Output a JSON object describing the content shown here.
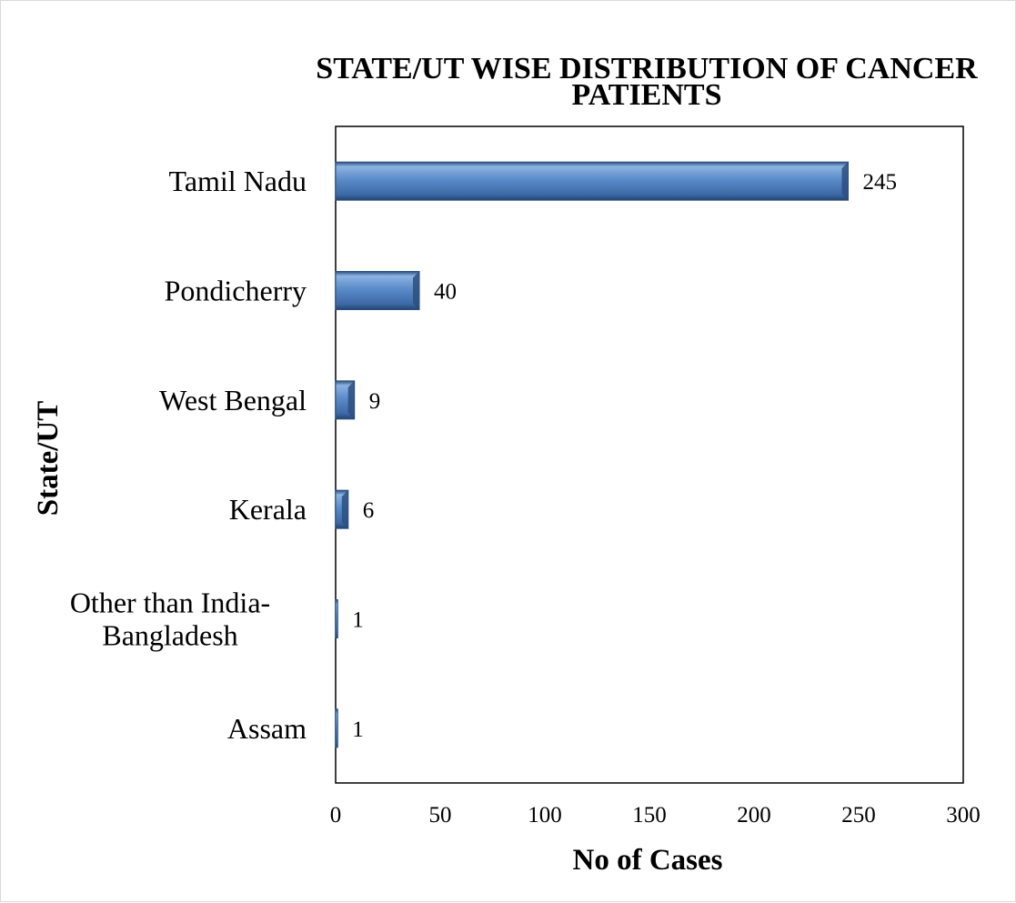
{
  "chart_data": {
    "type": "bar",
    "orientation": "horizontal",
    "title_lines": [
      "STATE/UT WISE DISTRIBUTION OF CANCER",
      "PATIENTS"
    ],
    "xlabel": "No of Cases",
    "ylabel": "State/UT",
    "categories": [
      "Tamil Nadu",
      "Pondicherry",
      "West Bengal",
      "Kerala",
      "Other than India-Bangladesh",
      "Assam"
    ],
    "category_lines": [
      [
        "Tamil Nadu"
      ],
      [
        "Pondicherry"
      ],
      [
        "West Bengal"
      ],
      [
        "Kerala"
      ],
      [
        "Other than India-",
        "Bangladesh"
      ],
      [
        "Assam"
      ]
    ],
    "values": [
      245,
      40,
      9,
      6,
      1,
      1
    ],
    "xlim": [
      0,
      300
    ],
    "xticks": [
      "0",
      "50",
      "100",
      "150",
      "200",
      "250",
      "300"
    ],
    "grid": false,
    "legend": "none",
    "bar_color": "#4f81bd",
    "bar_dark_color": "#2b4f7e",
    "bar_light_color": "#8db3e2"
  }
}
